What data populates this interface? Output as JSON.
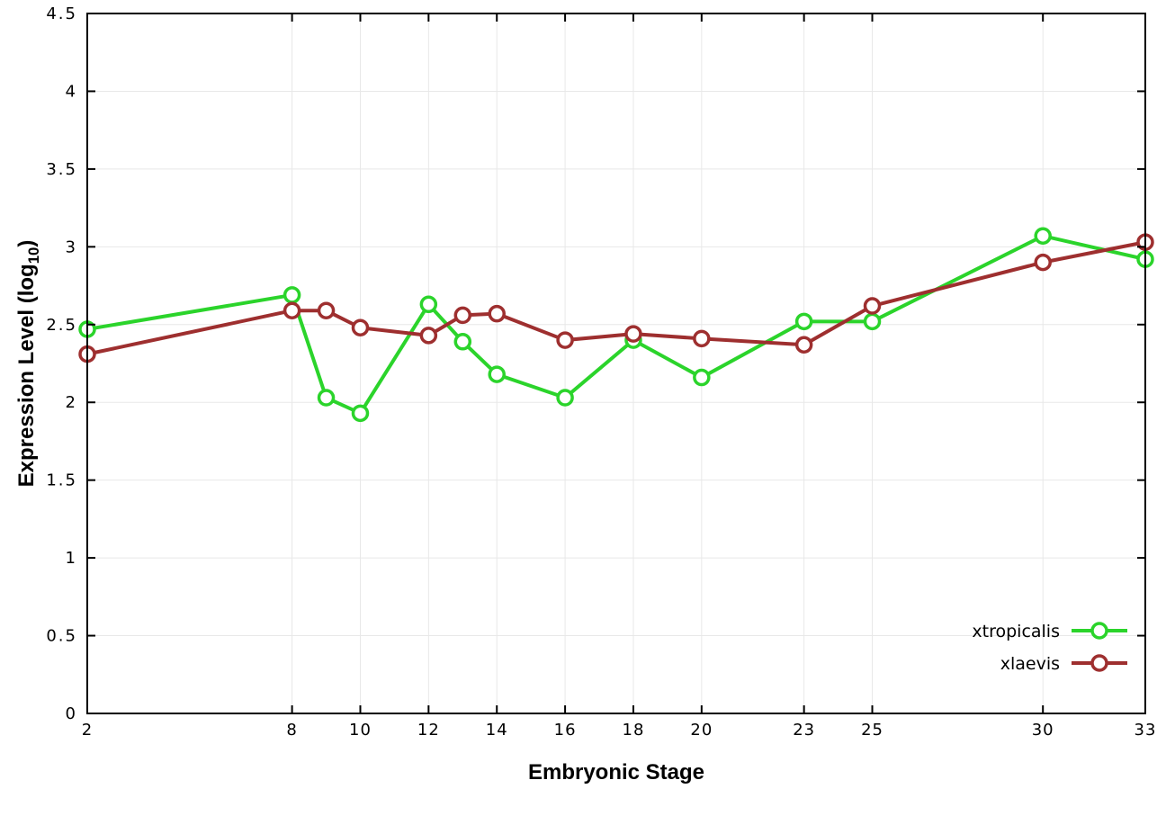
{
  "colors": {
    "background": "#ffffff",
    "axis": "#000000",
    "grid": "#e8e8e8",
    "series_green": "#2bd42b",
    "series_brown": "#9e2f2f"
  },
  "chart_data": {
    "type": "line",
    "title": "",
    "xlabel": "Embryonic Stage",
    "ylabel": {
      "prefix": "Expression Level (log",
      "sub": "10",
      "suffix": ")"
    },
    "x": [
      2,
      8,
      9,
      10,
      12,
      13,
      14,
      16,
      18,
      20,
      23,
      25,
      30,
      33
    ],
    "xticks": [
      2,
      8,
      10,
      12,
      14,
      16,
      18,
      20,
      23,
      25,
      30,
      33
    ],
    "xlim": [
      2,
      33
    ],
    "ylim": [
      0,
      4.5
    ],
    "ytick_step": 0.5,
    "grid": true,
    "legend_position": "bottom-right",
    "series": [
      {
        "name": "xtropicalis",
        "color": "#2bd42b",
        "values": [
          2.47,
          2.69,
          2.03,
          1.93,
          2.63,
          2.39,
          2.18,
          2.03,
          2.4,
          2.16,
          2.52,
          2.52,
          3.07,
          2.92
        ]
      },
      {
        "name": "xlaevis",
        "color": "#9e2f2f",
        "values": [
          2.31,
          2.59,
          2.59,
          2.48,
          2.43,
          2.56,
          2.57,
          2.4,
          2.44,
          2.41,
          2.37,
          2.62,
          2.9,
          3.03
        ]
      }
    ]
  }
}
